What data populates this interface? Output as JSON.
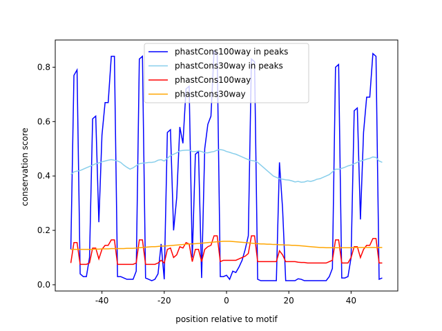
{
  "chart_data": {
    "type": "line",
    "xlabel": "position relative to motif",
    "ylabel": "conservation score",
    "x": [
      -50,
      -49,
      -48,
      -47,
      -46,
      -45,
      -44,
      -43,
      -42,
      -41,
      -40,
      -39,
      -38,
      -37,
      -36,
      -35,
      -34,
      -33,
      -32,
      -31,
      -30,
      -29,
      -28,
      -27,
      -26,
      -25,
      -24,
      -23,
      -22,
      -21,
      -20,
      -19,
      -18,
      -17,
      -16,
      -15,
      -14,
      -13,
      -12,
      -11,
      -10,
      -9,
      -8,
      -7,
      -6,
      -5,
      -4,
      -3,
      -2,
      -1,
      0,
      1,
      2,
      3,
      4,
      5,
      6,
      7,
      8,
      9,
      10,
      11,
      12,
      13,
      14,
      15,
      16,
      17,
      18,
      19,
      20,
      21,
      22,
      23,
      24,
      25,
      26,
      27,
      28,
      29,
      30,
      31,
      32,
      33,
      34,
      35,
      36,
      37,
      38,
      39,
      40,
      41,
      42,
      43,
      44,
      45,
      46,
      47,
      48,
      49,
      50
    ],
    "series": [
      {
        "name": "phastCons100way in peaks",
        "color": "#0000ff",
        "values": [
          0.13,
          0.77,
          0.79,
          0.04,
          0.03,
          0.03,
          0.1,
          0.61,
          0.62,
          0.23,
          0.55,
          0.67,
          0.67,
          0.84,
          0.84,
          0.03,
          0.03,
          0.025,
          0.02,
          0.02,
          0.02,
          0.05,
          0.83,
          0.84,
          0.025,
          0.02,
          0.015,
          0.02,
          0.04,
          0.15,
          0.02,
          0.56,
          0.57,
          0.2,
          0.32,
          0.58,
          0.52,
          0.72,
          0.73,
          0.1,
          0.48,
          0.49,
          0.025,
          0.5,
          0.59,
          0.62,
          0.86,
          0.85,
          0.03,
          0.03,
          0.035,
          0.02,
          0.05,
          0.045,
          0.065,
          0.09,
          0.13,
          0.18,
          0.83,
          0.82,
          0.02,
          0.015,
          0.015,
          0.015,
          0.015,
          0.015,
          0.015,
          0.45,
          0.28,
          0.015,
          0.015,
          0.015,
          0.015,
          0.022,
          0.02,
          0.015,
          0.015,
          0.015,
          0.015,
          0.015,
          0.015,
          0.015,
          0.015,
          0.03,
          0.06,
          0.8,
          0.81,
          0.025,
          0.025,
          0.03,
          0.1,
          0.64,
          0.65,
          0.24,
          0.56,
          0.69,
          0.69,
          0.85,
          0.84,
          0.02,
          0.025
        ]
      },
      {
        "name": "phastCons30way in peaks",
        "color": "#87ceeb",
        "values": [
          0.405,
          0.415,
          0.418,
          0.42,
          0.425,
          0.43,
          0.435,
          0.44,
          0.445,
          0.448,
          0.452,
          0.455,
          0.458,
          0.46,
          0.458,
          0.455,
          0.45,
          0.44,
          0.432,
          0.425,
          0.43,
          0.438,
          0.445,
          0.447,
          0.448,
          0.45,
          0.45,
          0.452,
          0.458,
          0.46,
          0.455,
          0.465,
          0.475,
          0.48,
          0.485,
          0.492,
          0.494,
          0.495,
          0.495,
          0.49,
          0.49,
          0.492,
          0.49,
          0.485,
          0.485,
          0.488,
          0.49,
          0.495,
          0.497,
          0.495,
          0.49,
          0.487,
          0.483,
          0.48,
          0.475,
          0.47,
          0.465,
          0.46,
          0.457,
          0.455,
          0.45,
          0.44,
          0.43,
          0.42,
          0.41,
          0.4,
          0.395,
          0.39,
          0.388,
          0.386,
          0.385,
          0.382,
          0.378,
          0.38,
          0.377,
          0.378,
          0.382,
          0.38,
          0.383,
          0.388,
          0.39,
          0.395,
          0.4,
          0.405,
          0.415,
          0.425,
          0.425,
          0.428,
          0.432,
          0.437,
          0.44,
          0.445,
          0.45,
          0.455,
          0.458,
          0.462,
          0.465,
          0.47,
          0.468,
          0.455,
          0.45
        ]
      },
      {
        "name": "phastCons100way",
        "color": "#ff0000",
        "values": [
          0.08,
          0.155,
          0.155,
          0.075,
          0.075,
          0.075,
          0.08,
          0.135,
          0.135,
          0.095,
          0.13,
          0.145,
          0.145,
          0.165,
          0.165,
          0.075,
          0.075,
          0.075,
          0.075,
          0.075,
          0.075,
          0.08,
          0.165,
          0.165,
          0.075,
          0.075,
          0.075,
          0.075,
          0.08,
          0.09,
          0.08,
          0.13,
          0.135,
          0.1,
          0.11,
          0.14,
          0.135,
          0.155,
          0.15,
          0.085,
          0.13,
          0.13,
          0.085,
          0.13,
          0.14,
          0.145,
          0.18,
          0.18,
          0.085,
          0.09,
          0.09,
          0.09,
          0.09,
          0.09,
          0.095,
          0.1,
          0.105,
          0.115,
          0.18,
          0.18,
          0.085,
          0.085,
          0.085,
          0.085,
          0.085,
          0.085,
          0.085,
          0.125,
          0.11,
          0.085,
          0.085,
          0.085,
          0.085,
          0.083,
          0.082,
          0.082,
          0.08,
          0.08,
          0.08,
          0.08,
          0.08,
          0.08,
          0.08,
          0.085,
          0.09,
          0.165,
          0.165,
          0.08,
          0.08,
          0.08,
          0.1,
          0.14,
          0.14,
          0.1,
          0.13,
          0.145,
          0.145,
          0.17,
          0.17,
          0.08,
          0.08
        ]
      },
      {
        "name": "phastCons30way",
        "color": "#ffa500",
        "values": [
          0.13,
          0.13,
          0.13,
          0.13,
          0.13,
          0.13,
          0.13,
          0.13,
          0.131,
          0.131,
          0.132,
          0.132,
          0.132,
          0.133,
          0.133,
          0.133,
          0.133,
          0.133,
          0.134,
          0.134,
          0.134,
          0.135,
          0.136,
          0.137,
          0.138,
          0.139,
          0.14,
          0.14,
          0.141,
          0.142,
          0.142,
          0.143,
          0.144,
          0.145,
          0.146,
          0.147,
          0.148,
          0.149,
          0.15,
          0.15,
          0.151,
          0.152,
          0.153,
          0.154,
          0.155,
          0.156,
          0.157,
          0.158,
          0.159,
          0.16,
          0.16,
          0.16,
          0.159,
          0.158,
          0.157,
          0.156,
          0.155,
          0.154,
          0.153,
          0.152,
          0.151,
          0.15,
          0.15,
          0.149,
          0.149,
          0.148,
          0.148,
          0.147,
          0.147,
          0.146,
          0.146,
          0.145,
          0.145,
          0.144,
          0.143,
          0.142,
          0.141,
          0.14,
          0.139,
          0.138,
          0.137,
          0.137,
          0.136,
          0.136,
          0.136,
          0.136,
          0.136,
          0.136,
          0.136,
          0.136,
          0.136,
          0.137,
          0.137,
          0.137,
          0.137,
          0.137,
          0.137,
          0.137,
          0.137,
          0.137,
          0.137
        ]
      }
    ],
    "xlim": [
      -55,
      55
    ],
    "xticks": [
      -40,
      -20,
      0,
      20,
      40
    ],
    "ylim": [
      -0.023,
      0.9
    ],
    "yticks": [
      {
        "value": 0,
        "label": "0.0"
      },
      0.2,
      0.4,
      0.6,
      0.8
    ],
    "legend": "upper center"
  }
}
